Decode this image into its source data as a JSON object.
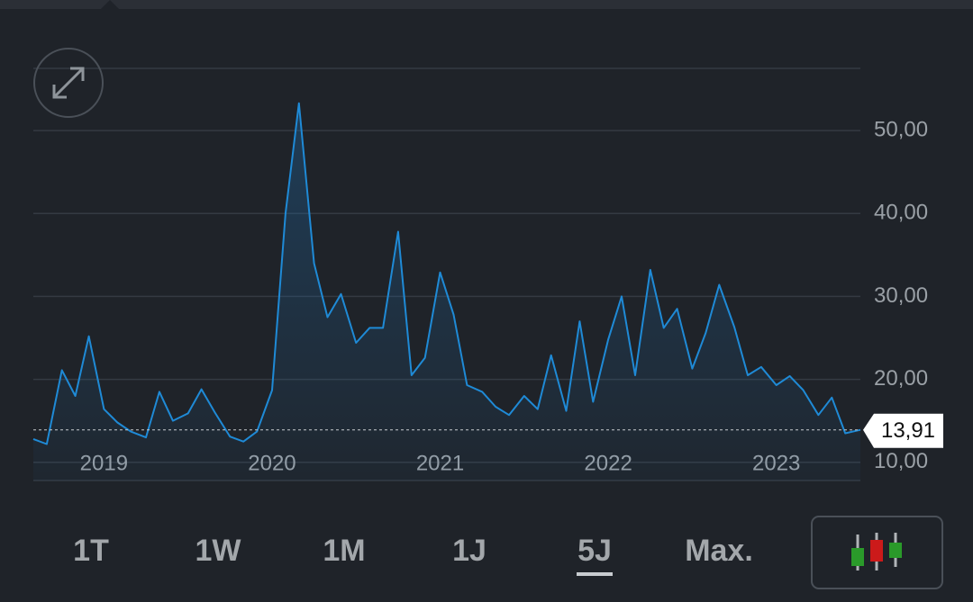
{
  "chart_data": {
    "type": "line",
    "x": [
      2018.58,
      2018.66,
      2018.75,
      2018.83,
      2018.91,
      2019.0,
      2019.08,
      2019.16,
      2019.25,
      2019.33,
      2019.41,
      2019.5,
      2019.58,
      2019.66,
      2019.75,
      2019.83,
      2019.91,
      2020.0,
      2020.08,
      2020.16,
      2020.25,
      2020.33,
      2020.41,
      2020.5,
      2020.58,
      2020.66,
      2020.75,
      2020.83,
      2020.91,
      2021.0,
      2021.08,
      2021.16,
      2021.25,
      2021.33,
      2021.41,
      2021.5,
      2021.58,
      2021.66,
      2021.75,
      2021.83,
      2021.91,
      2022.0,
      2022.08,
      2022.16,
      2022.25,
      2022.33,
      2022.41,
      2022.5,
      2022.58,
      2022.66,
      2022.75,
      2022.83,
      2022.91,
      2023.0,
      2023.08,
      2023.16,
      2023.25,
      2023.33,
      2023.41,
      2023.5
    ],
    "series": [
      {
        "color": "#1f8ad6",
        "values": [
          12.8,
          12.2,
          21.1,
          18.0,
          25.2,
          16.4,
          14.8,
          13.7,
          13.0,
          18.5,
          15.0,
          15.9,
          18.8,
          16.0,
          13.1,
          12.5,
          13.7,
          18.7,
          40.0,
          53.3,
          34.0,
          27.5,
          30.3,
          24.4,
          26.2,
          26.2,
          37.8,
          20.5,
          22.6,
          32.9,
          27.8,
          19.3,
          18.5,
          16.7,
          15.7,
          18.0,
          16.4,
          22.9,
          16.2,
          27.0,
          17.3,
          24.8,
          30.0,
          20.5,
          33.2,
          26.2,
          28.5,
          21.3,
          25.6,
          31.4,
          26.3,
          20.5,
          21.5,
          19.3,
          20.4,
          18.7,
          15.7,
          17.8,
          13.5,
          13.91
        ]
      }
    ],
    "xlim": [
      2018.58,
      2023.5
    ],
    "xticks": [
      2019,
      2020,
      2021,
      2022,
      2023
    ],
    "ylim": [
      7.8,
      57.5
    ],
    "yticks": [
      {
        "value": 10,
        "label": "10,00"
      },
      {
        "value": 20,
        "label": "20,00"
      },
      {
        "value": 30,
        "label": "30,00"
      },
      {
        "value": 40,
        "label": "40,00"
      },
      {
        "value": 50,
        "label": "50,00"
      }
    ],
    "grid": true,
    "current_price": {
      "value": 13.91,
      "label": "13,91"
    }
  },
  "controls": {
    "ranges": [
      "1T",
      "1W",
      "1M",
      "1J",
      "5J",
      "Max."
    ],
    "selected": 4
  }
}
